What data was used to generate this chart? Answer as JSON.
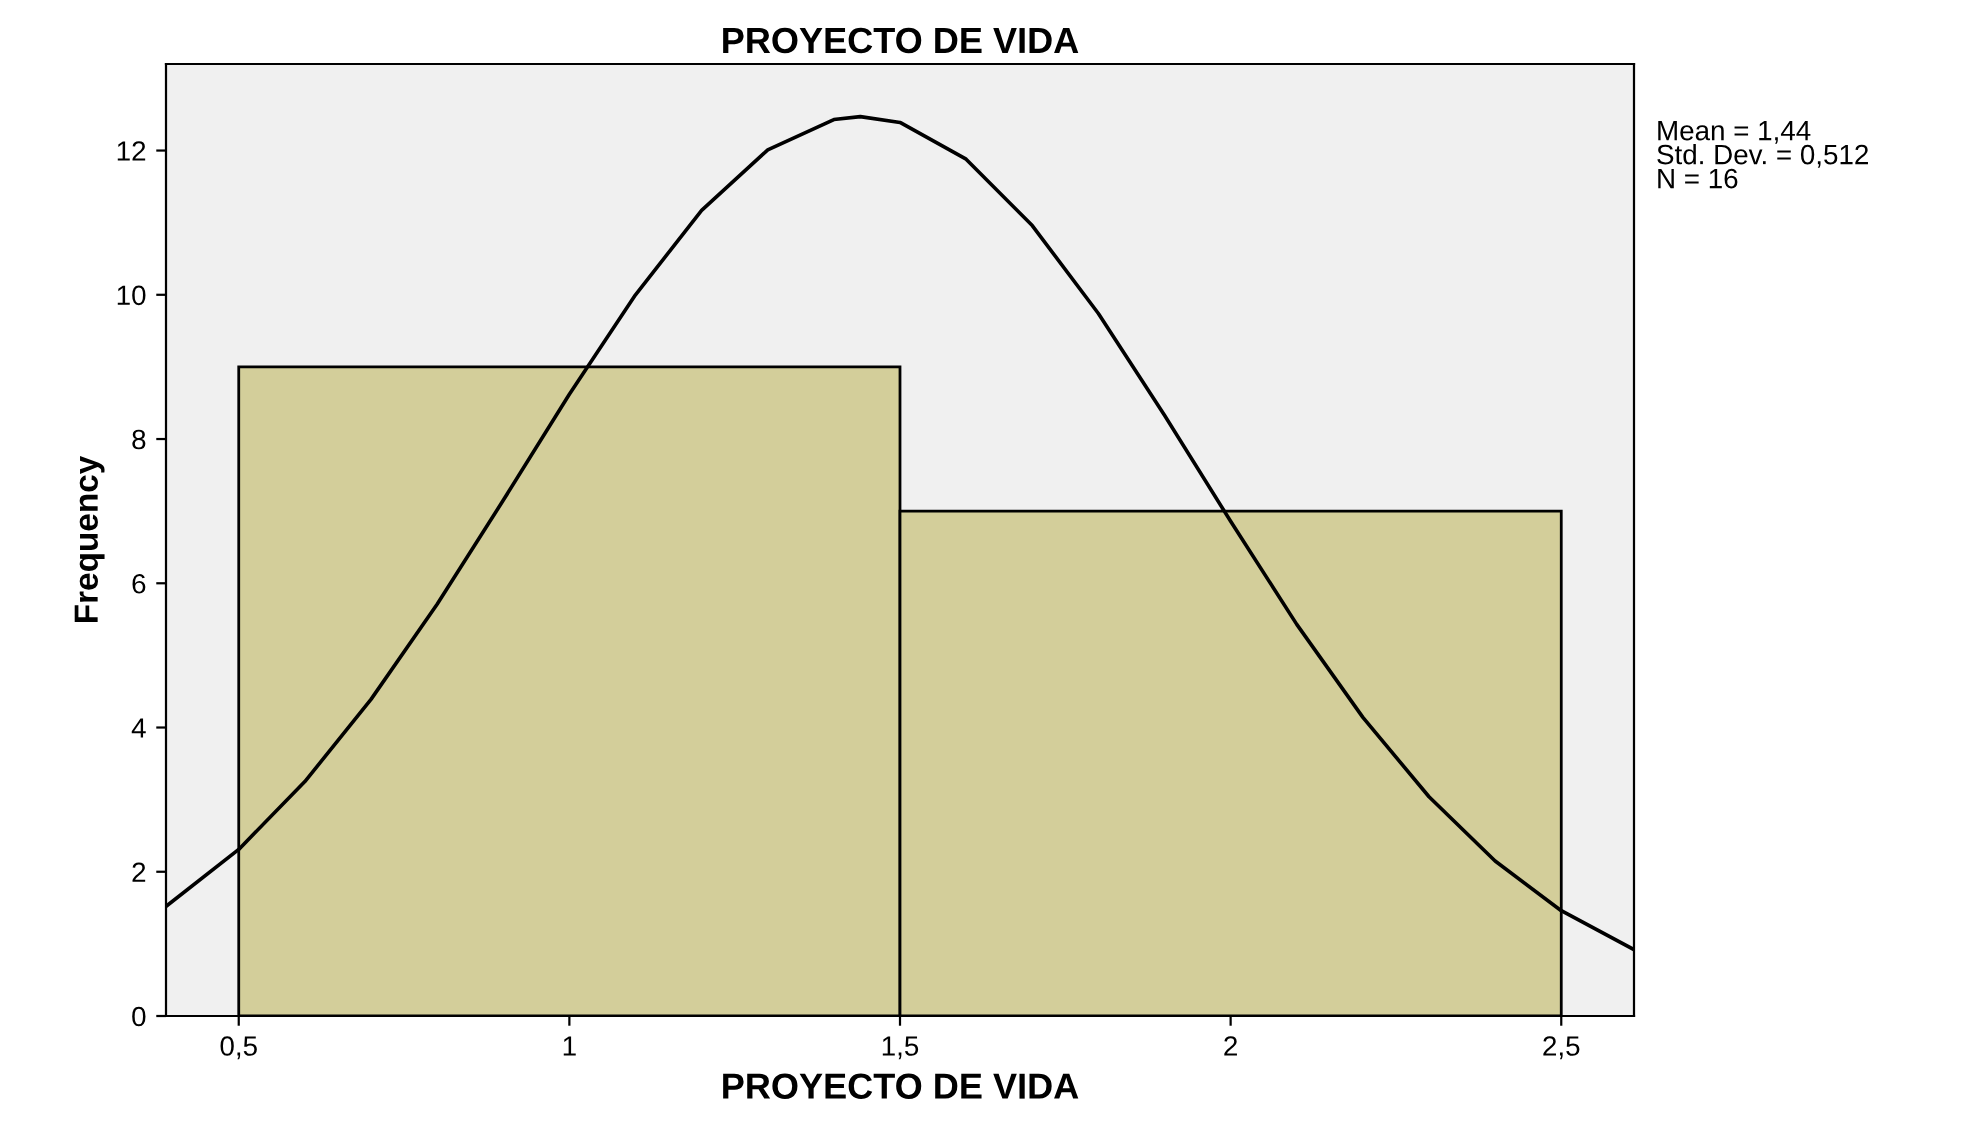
{
  "chart_data": {
    "type": "histogram",
    "title": "PROYECTO DE VIDA",
    "xlabel": "PROYECTO DE VIDA",
    "ylabel": "Frequency",
    "bins": [
      0.5,
      1.5,
      2.5
    ],
    "values": [
      9,
      7
    ],
    "color": "#d3ce9a",
    "series": [
      {
        "type": "line",
        "color": "#000000",
        "x": [
          0.39,
          0.5,
          0.6,
          0.7,
          0.8,
          0.9,
          1.0,
          1.1,
          1.2,
          1.3,
          1.4,
          1.44,
          1.5,
          1.6,
          1.7,
          1.8,
          1.9,
          2.0,
          2.1,
          2.2,
          2.3,
          2.4,
          2.5,
          2.61
        ],
        "values": [
          1.52,
          2.31,
          3.25,
          4.39,
          5.71,
          7.15,
          8.62,
          10.0,
          11.17,
          12.01,
          12.43,
          12.47,
          12.39,
          11.88,
          10.96,
          9.74,
          8.33,
          6.86,
          5.43,
          4.14,
          3.04,
          2.15,
          1.46,
          0.92
        ]
      }
    ],
    "xlim": [
      0.39,
      2.61
    ],
    "ylim": [
      0,
      13.2
    ],
    "xticks": [
      {
        "value": 0.5,
        "label": "0,5"
      },
      1,
      {
        "value": 1.5,
        "label": "1,5"
      },
      2,
      {
        "value": 2.5,
        "label": "2,5"
      }
    ],
    "yticks": [
      0,
      2,
      4,
      6,
      8,
      10,
      12
    ],
    "marker": "none",
    "line_style": "solid",
    "grid": false,
    "legend": false,
    "annotations": [
      "Mean = 1,44",
      "Std. Dev. = 0,512",
      "N = 16"
    ]
  }
}
